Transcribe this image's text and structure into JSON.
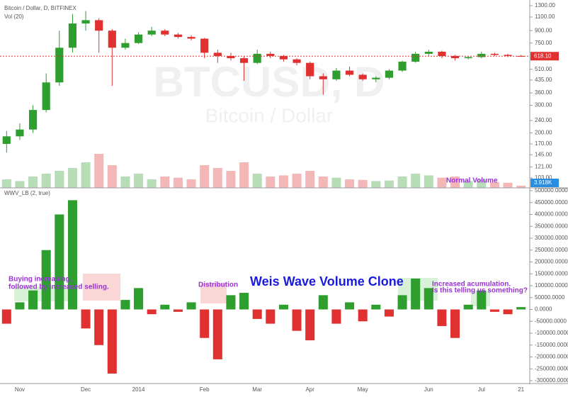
{
  "chart_data": {
    "type": "candlestick",
    "title": "Bitcoin / Dollar, D, BITFINEX",
    "watermark": "BTCUSD, D",
    "watermark_subtitle": "Bitcoin / Dollar",
    "categories": [
      null,
      "Nov",
      null,
      null,
      null,
      null,
      "Dec",
      null,
      null,
      null,
      "2014",
      null,
      null,
      null,
      null,
      "Feb",
      null,
      null,
      null,
      "Mar",
      null,
      null,
      null,
      "Apr",
      null,
      null,
      null,
      "May",
      null,
      null,
      null,
      null,
      "Jun",
      null,
      null,
      null,
      "Jul",
      null,
      null,
      "21"
    ],
    "open": [
      170,
      190,
      210,
      280,
      420,
      700,
      1000,
      1050,
      900,
      700,
      750,
      850,
      900,
      850,
      820,
      800,
      650,
      620,
      600,
      560,
      640,
      620,
      590,
      560,
      460,
      440,
      500,
      470,
      440,
      450,
      500,
      570,
      640,
      660,
      620,
      600,
      610,
      640,
      630,
      620
    ],
    "high": [
      205,
      230,
      300,
      480,
      900,
      1150,
      1200,
      1080,
      920,
      800,
      880,
      950,
      920,
      870,
      840,
      810,
      680,
      650,
      620,
      680,
      660,
      630,
      600,
      570,
      480,
      520,
      530,
      480,
      460,
      510,
      580,
      660,
      680,
      670,
      630,
      620,
      660,
      650,
      640,
      630
    ],
    "low": [
      150,
      180,
      200,
      270,
      400,
      650,
      900,
      650,
      400,
      680,
      740,
      830,
      830,
      800,
      780,
      600,
      560,
      580,
      430,
      550,
      600,
      570,
      540,
      440,
      350,
      430,
      460,
      430,
      420,
      440,
      490,
      560,
      620,
      600,
      580,
      590,
      600,
      620,
      610,
      612
    ],
    "close": [
      190,
      210,
      280,
      420,
      700,
      1000,
      1050,
      900,
      700,
      750,
      850,
      900,
      850,
      820,
      800,
      650,
      620,
      600,
      560,
      640,
      620,
      590,
      560,
      460,
      440,
      500,
      470,
      440,
      450,
      500,
      570,
      640,
      660,
      620,
      600,
      610,
      640,
      630,
      620,
      618.1
    ],
    "up_color": "#2e9e2e",
    "down_color": "#e03030",
    "log_scale": true,
    "ylim": [
      89,
      1413
    ],
    "yticks": [
      {
        "value": 1300,
        "label": "1300.00"
      },
      {
        "value": 1100,
        "label": "1100.00"
      },
      {
        "value": 900,
        "label": "900.00"
      },
      {
        "value": 750,
        "label": "750.00"
      },
      {
        "value": 510,
        "label": "510.00"
      },
      {
        "value": 435,
        "label": "435.00"
      },
      {
        "value": 360,
        "label": "360.00"
      },
      {
        "value": 300,
        "label": "300.00"
      },
      {
        "value": 240,
        "label": "240.00"
      },
      {
        "value": 200,
        "label": "200.00"
      },
      {
        "value": 170,
        "label": "170.00"
      },
      {
        "value": 145,
        "label": "145.00"
      },
      {
        "value": 121,
        "label": "121.00"
      },
      {
        "value": 103,
        "label": "103.00"
      }
    ],
    "last_price": {
      "value": 618.1,
      "label": "618.10"
    },
    "volume": {
      "name": "Vol (20)",
      "ylim": [
        0,
        100000
      ],
      "values": [
        15000,
        12000,
        20000,
        25000,
        30000,
        35000,
        45000,
        60000,
        40000,
        20000,
        25000,
        15000,
        20000,
        18000,
        15000,
        40000,
        35000,
        30000,
        45000,
        25000,
        20000,
        22000,
        25000,
        30000,
        20000,
        18000,
        15000,
        14000,
        12000,
        13000,
        20000,
        25000,
        22000,
        18000,
        20000,
        12000,
        15000,
        10000,
        9000,
        3918
      ],
      "last": {
        "value": 3918,
        "label": "3.918K"
      }
    },
    "wwv": {
      "name": "WWV_LB (2, true)",
      "title": "Weis Wave Volume Clone",
      "ylim": [
        -300000,
        500000
      ],
      "yticks": [
        {
          "value": 500000,
          "label": "500000.0000"
        },
        {
          "value": 450000,
          "label": "450000.0000"
        },
        {
          "value": 400000,
          "label": "400000.0000"
        },
        {
          "value": 350000,
          "label": "350000.0000"
        },
        {
          "value": 300000,
          "label": "300000.0000"
        },
        {
          "value": 250000,
          "label": "250000.0000"
        },
        {
          "value": 200000,
          "label": "200000.0000"
        },
        {
          "value": 150000,
          "label": "150000.0000"
        },
        {
          "value": 100000,
          "label": "100000.0000"
        },
        {
          "value": 50000,
          "label": "50000.0000"
        },
        {
          "value": 0,
          "label": "0.0000"
        },
        {
          "value": -50000,
          "label": "-50000.0000"
        },
        {
          "value": -100000,
          "label": "-100000.0000"
        },
        {
          "value": -150000,
          "label": "-150000.0000"
        },
        {
          "value": -200000,
          "label": "-200000.0000"
        },
        {
          "value": -250000,
          "label": "-250000.0000"
        },
        {
          "value": -300000,
          "label": "-300000.0000"
        }
      ],
      "values": [
        -60000,
        30000,
        80000,
        250000,
        400000,
        460000,
        -80000,
        -150000,
        -270000,
        40000,
        90000,
        -20000,
        20000,
        -10000,
        30000,
        -120000,
        -210000,
        60000,
        70000,
        -40000,
        -60000,
        20000,
        -90000,
        -130000,
        60000,
        -60000,
        30000,
        -50000,
        20000,
        -30000,
        60000,
        130000,
        90000,
        -70000,
        -120000,
        20000,
        80000,
        -10000,
        -20000,
        10000
      ]
    },
    "annotations": [
      "Buying increasing,",
      "followed by increased selling.",
      "Distribution",
      "Normal Volume",
      "Increased acumulation.",
      "Is this telling us something?"
    ]
  }
}
